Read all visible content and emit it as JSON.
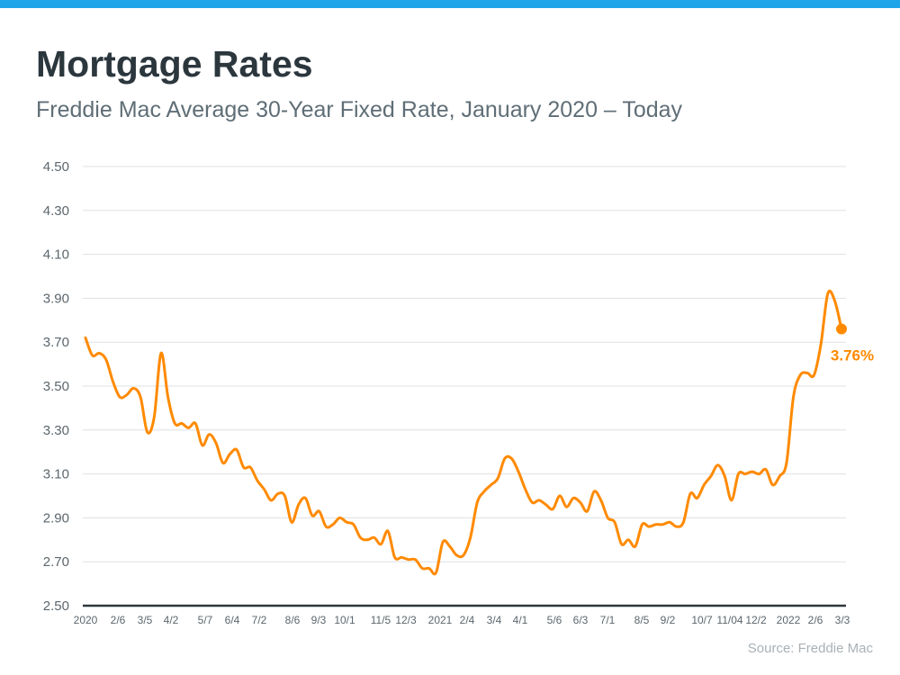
{
  "header": {
    "title": "Mortgage Rates",
    "subtitle": "Freddie Mac Average 30-Year Fixed Rate, January 2020 – Today"
  },
  "source": "Source: Freddie Mac",
  "colors": {
    "top_bar": "#1ea5e9",
    "line": "#ff8a00",
    "title": "#2b363d",
    "grid": "#dde0e3",
    "axis": "#2f383e"
  },
  "chart_data": {
    "type": "line",
    "title": "",
    "xlabel": "",
    "ylabel": "",
    "ylim": [
      2.5,
      4.5
    ],
    "yticks": [
      "4.50",
      "4.30",
      "4.10",
      "3.90",
      "3.70",
      "3.50",
      "3.30",
      "3.10",
      "2.90",
      "2.70",
      "2.50"
    ],
    "xticks": [
      "2020",
      "2/6",
      "3/5",
      "4/2",
      "5/7",
      "6/4",
      "7/2",
      "8/6",
      "9/3",
      "10/1",
      "11/5",
      "12/3",
      "2021",
      "2/4",
      "3/4",
      "4/1",
      "5/6",
      "6/3",
      "7/1",
      "8/5",
      "9/2",
      "10/7",
      "11/04",
      "12/2",
      "2022",
      "2/6",
      "3/3"
    ],
    "grid": true,
    "series": [
      {
        "values": [
          3.72,
          3.64,
          3.65,
          3.62,
          3.52,
          3.45,
          3.46,
          3.49,
          3.45,
          3.29,
          3.36,
          3.65,
          3.45,
          3.33,
          3.33,
          3.31,
          3.33,
          3.23,
          3.28,
          3.24,
          3.15,
          3.19,
          3.21,
          3.13,
          3.13,
          3.07,
          3.03,
          2.98,
          3.01,
          3.0,
          2.88,
          2.96,
          2.99,
          2.91,
          2.93,
          2.86,
          2.87,
          2.9,
          2.88,
          2.87,
          2.81,
          2.8,
          2.81,
          2.78,
          2.84,
          2.72,
          2.72,
          2.71,
          2.71,
          2.67,
          2.67,
          2.65,
          2.79,
          2.77,
          2.73,
          2.73,
          2.81,
          2.97,
          3.02,
          3.05,
          3.08,
          3.17,
          3.17,
          3.11,
          3.03,
          2.97,
          2.98,
          2.96,
          2.94,
          3.0,
          2.95,
          2.99,
          2.97,
          2.93,
          3.02,
          2.98,
          2.9,
          2.88,
          2.78,
          2.8,
          2.77,
          2.87,
          2.86,
          2.87,
          2.87,
          2.88,
          2.86,
          2.88,
          3.01,
          2.99,
          3.05,
          3.09,
          3.14,
          3.09,
          2.98,
          3.1,
          3.1,
          3.11,
          3.1,
          3.12,
          3.05,
          3.09,
          3.15,
          3.45,
          3.55,
          3.56,
          3.55,
          3.69,
          3.92,
          3.89,
          3.76
        ]
      }
    ],
    "annotation": "3.76%"
  }
}
